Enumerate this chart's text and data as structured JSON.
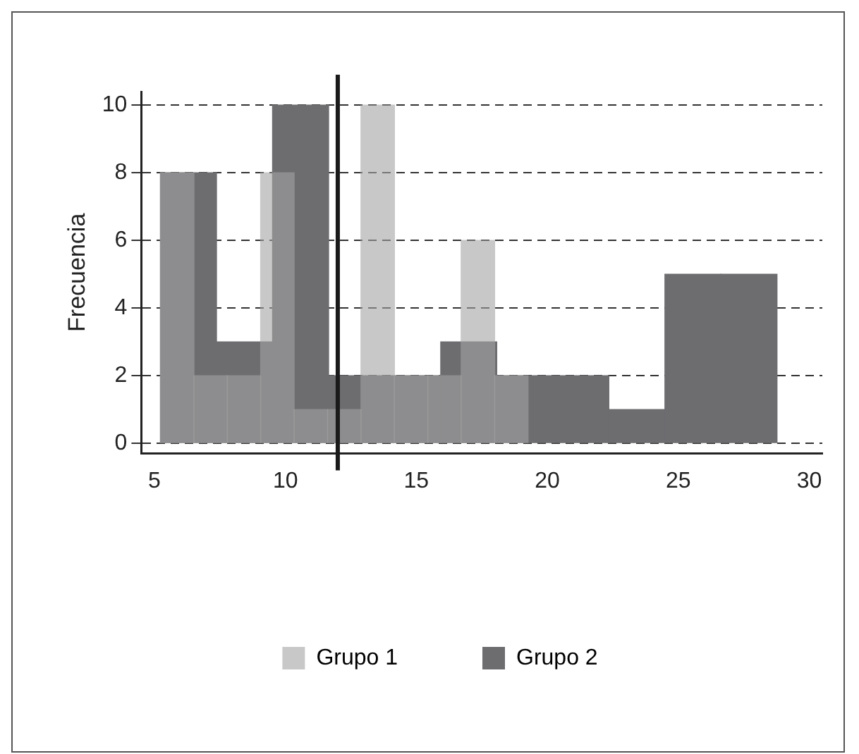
{
  "chart_data": {
    "type": "histogram",
    "ylabel": "Frecuencia",
    "xlim": [
      4.5,
      30.5
    ],
    "xticks": [
      5,
      10,
      15,
      20,
      25,
      30
    ],
    "ylim": [
      -0.3,
      10.4
    ],
    "yticks": [
      0,
      2,
      4,
      6,
      8,
      10
    ],
    "grid": "y",
    "legend": "bottom",
    "bins": [
      5.23,
      6.51,
      7.78,
      9.06,
      10.33,
      11.61,
      12.89,
      14.16,
      15.44,
      16.71,
      17.99,
      19.26
    ],
    "series": [
      {
        "name": "Grupo 1",
        "color": "#c8c8c8",
        "values": [
          8,
          2,
          2,
          8,
          1,
          1,
          10,
          2,
          2,
          6,
          2
        ]
      },
      {
        "name": "Grupo 2",
        "color": "#6d6d70",
        "bins": [
          5.23,
          7.37,
          9.51,
          11.65,
          13.79,
          15.93,
          18.07,
          20.21,
          22.35,
          24.49,
          26.63,
          28.77
        ],
        "values": [
          8,
          3,
          10,
          2,
          2,
          3,
          2,
          2,
          1,
          5,
          5
        ]
      }
    ],
    "ref_lines": [
      {
        "axis": "x",
        "value": 12,
        "color": "#1a1a1a"
      }
    ]
  }
}
